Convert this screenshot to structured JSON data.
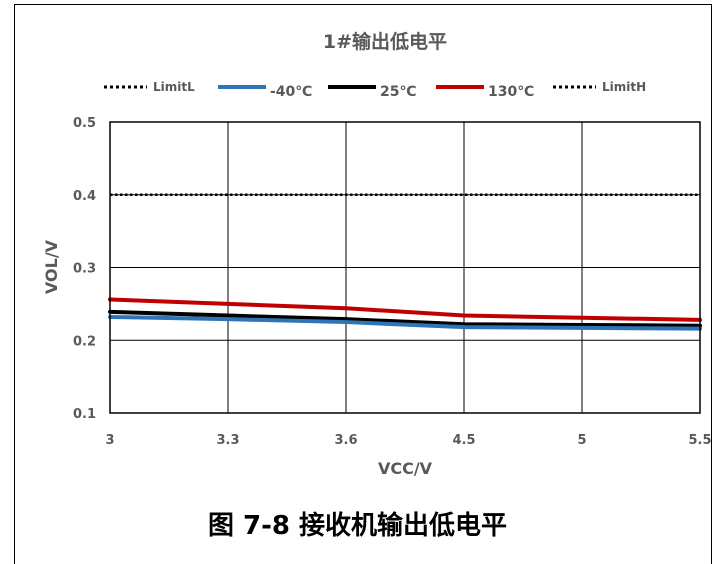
{
  "chart_data": {
    "type": "line",
    "title": "1#输出低电平",
    "xlabel": "VCC/V",
    "ylabel": "VOL/V",
    "x": [
      3,
      3.3,
      3.6,
      4.5,
      5,
      5.5
    ],
    "x_tick_labels": [
      "3",
      "3.3",
      "3.6",
      "4.5",
      "5",
      "5.5"
    ],
    "x_axis_scale": "category",
    "ylim": [
      0.1,
      0.5
    ],
    "y_ticks": [
      0.1,
      0.2,
      0.3,
      0.4,
      0.5
    ],
    "y_tick_labels": [
      "0.1",
      "0.2",
      "0.3",
      "0.4",
      "0.5"
    ],
    "grid": true,
    "legend_position": "top",
    "series": [
      {
        "name": "LimitL",
        "values": [
          0.4,
          0.4,
          0.4,
          0.4,
          0.4,
          0.4
        ],
        "color": "#000000",
        "style": "dotted"
      },
      {
        "name": "-40℃",
        "values": [
          0.232,
          0.229,
          0.225,
          0.218,
          0.217,
          0.216
        ],
        "color": "#2E75B6",
        "style": "solid"
      },
      {
        "name": "25℃",
        "values": [
          0.239,
          0.234,
          0.229,
          0.222,
          0.221,
          0.22
        ],
        "color": "#000000",
        "style": "solid"
      },
      {
        "name": "130℃",
        "values": [
          0.256,
          0.25,
          0.244,
          0.234,
          0.231,
          0.228
        ],
        "color": "#C00000",
        "style": "solid"
      },
      {
        "name": "LimitH",
        "values": [
          0.4,
          0.4,
          0.4,
          0.4,
          0.4,
          0.4
        ],
        "color": "#000000",
        "style": "dotted"
      }
    ]
  },
  "caption": "图 7-8 接收机输出低电平"
}
